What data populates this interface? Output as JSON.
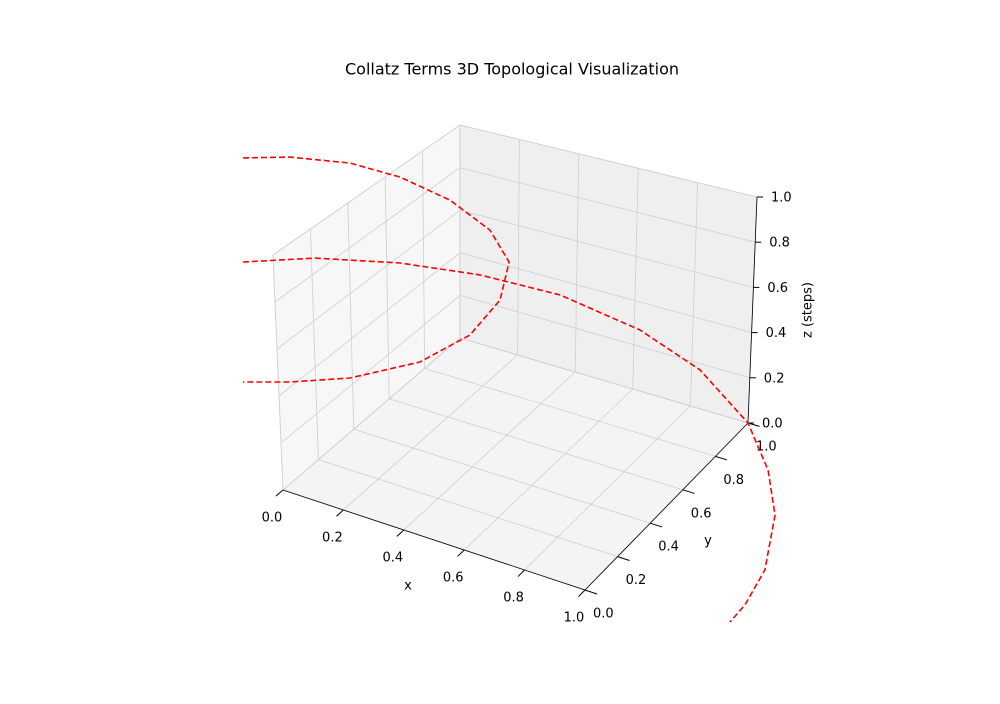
{
  "chart_data": {
    "type": "line3d",
    "title": "Collatz Terms 3D Topological Visualization",
    "xlabel": "x",
    "ylabel": "y",
    "zlabel": "z (steps)",
    "xlim": [
      0,
      1
    ],
    "ylim": [
      0,
      1
    ],
    "zlim": [
      0,
      1
    ],
    "xticks": [
      {
        "value": 0,
        "label": "0.0"
      },
      0.2,
      0.4,
      0.6,
      0.8,
      {
        "value": 1,
        "label": "1.0"
      }
    ],
    "yticks": [
      {
        "value": 0,
        "label": "0.0"
      },
      0.2,
      0.4,
      0.6,
      0.8,
      {
        "value": 1,
        "label": "1.0"
      }
    ],
    "zticks": [
      {
        "value": 0,
        "label": "0.0"
      },
      0.2,
      0.4,
      0.6,
      0.8,
      {
        "value": 1,
        "label": "1.0"
      }
    ],
    "grid": true,
    "series": [
      {
        "color": "#ff0000",
        "linestyle": "dashed",
        "x": [
          -0.087,
          0.071,
          0.272,
          0.438,
          0.602,
          0.732,
          0.792,
          0.756,
          0.65,
          0.478,
          0.241,
          0.039,
          -0.119
        ],
        "y": [
          0,
          0,
          0,
          0,
          0,
          0,
          0,
          0,
          0,
          0,
          0,
          0,
          0
        ],
        "z": [
          1.376,
          1.447,
          1.507,
          1.518,
          1.49,
          1.418,
          1.307,
          1.13,
          0.936,
          0.748,
          0.579,
          0.476,
          0.409
        ]
      },
      {
        "color": "#ff0000",
        "linestyle": "dashed",
        "x": [
          -0.102,
          0.141,
          0.425,
          0.692,
          0.958,
          1.222,
          1.418,
          1.571,
          1.632,
          1.649,
          1.607,
          1.535,
          1.482
        ],
        "y": [
          0,
          0,
          0,
          0,
          0,
          0,
          0,
          0,
          0,
          0,
          0,
          0,
          0
        ],
        "z": [
          0.927,
          1.047,
          1.147,
          1.21,
          1.238,
          1.201,
          1.114,
          0.954,
          0.779,
          0.595,
          0.344,
          0.164,
          0.069
        ]
      }
    ]
  }
}
